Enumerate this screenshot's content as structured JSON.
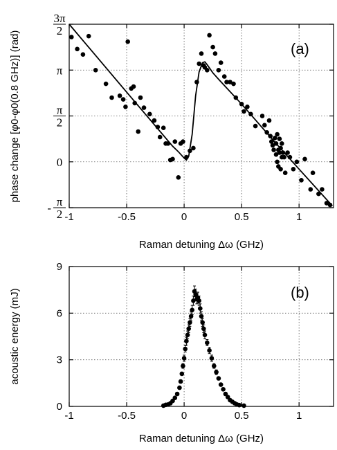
{
  "chart_data": [
    {
      "type": "scatter",
      "panel_label": "(a)",
      "xlabel": "Raman detuning Δω   (GHz)",
      "ylabel": "phase change [φ0-φ0(0.8 GHz)]  (rad)",
      "xlim": [
        -1,
        1.3
      ],
      "ylim": [
        -0.5,
        1.5
      ],
      "y_unit": "π rad",
      "xticks": [
        -1,
        -0.5,
        0,
        0.5,
        1
      ],
      "xtick_labels": [
        "-1",
        "-0.5",
        "0",
        "0.5",
        "1"
      ],
      "yticks": [
        -0.5,
        0,
        0.5,
        1,
        1.5
      ],
      "ytick_labels": [
        {
          "sign": "-",
          "num": "π",
          "den": "2"
        },
        {
          "sign": "",
          "num": "0",
          "den": ""
        },
        {
          "sign": "",
          "num": "π",
          "den": "2"
        },
        {
          "sign": "",
          "num": "π",
          "den": ""
        },
        {
          "sign": "",
          "num": "3π",
          "den": "2"
        }
      ],
      "grid": true,
      "series": [
        {
          "kind": "scatter",
          "x": [
            -0.98,
            -0.93,
            -0.88,
            -0.83,
            -0.77,
            -0.68,
            -0.63,
            -0.56,
            -0.53,
            -0.51,
            -0.49,
            -0.46,
            -0.44,
            -0.43,
            -0.4,
            -0.38,
            -0.35,
            -0.3,
            -0.26,
            -0.23,
            -0.21,
            -0.18,
            -0.16,
            -0.14,
            -0.12,
            -0.1,
            -0.08,
            -0.05,
            -0.03,
            -0.01,
            0.02,
            0.05,
            0.08,
            0.11,
            0.13,
            0.15,
            0.17,
            0.18,
            0.2,
            0.22,
            0.25,
            0.27,
            0.3,
            0.32,
            0.35,
            0.37,
            0.4,
            0.43,
            0.45,
            0.5,
            0.52,
            0.55,
            0.58,
            0.62,
            0.68,
            0.7,
            0.72,
            0.74,
            0.75,
            0.76,
            0.77,
            0.78,
            0.79,
            0.8,
            0.8,
            0.81,
            0.81,
            0.82,
            0.82,
            0.83,
            0.83,
            0.84,
            0.84,
            0.85,
            0.85,
            0.86,
            0.87,
            0.88,
            0.9,
            0.92,
            0.95,
            0.98,
            1.02,
            1.05,
            1.1,
            1.12,
            1.17,
            1.2,
            1.24,
            1.27
          ],
          "y": [
            1.36,
            1.23,
            1.17,
            1.37,
            1.0,
            0.85,
            0.7,
            0.72,
            0.68,
            0.6,
            1.31,
            0.8,
            0.82,
            0.64,
            0.33,
            0.7,
            0.59,
            0.52,
            0.45,
            0.38,
            0.27,
            0.37,
            0.2,
            0.2,
            0.02,
            0.03,
            0.22,
            -0.17,
            0.2,
            0.22,
            0.05,
            0.12,
            0.15,
            0.87,
            1.07,
            1.18,
            1.05,
            1.03,
            1.0,
            1.38,
            1.25,
            1.18,
            1.0,
            1.08,
            0.93,
            0.87,
            0.87,
            0.85,
            0.7,
            0.63,
            0.55,
            0.6,
            0.52,
            0.39,
            0.5,
            0.4,
            0.32,
            0.45,
            0.28,
            0.22,
            0.18,
            0.13,
            0.26,
            0.08,
            0.2,
            0.0,
            0.3,
            -0.05,
            0.13,
            0.1,
            0.25,
            -0.08,
            0.15,
            0.05,
            0.2,
            0.1,
            0.05,
            -0.12,
            0.1,
            0.05,
            -0.08,
            0.0,
            -0.2,
            0.03,
            -0.3,
            -0.12,
            -0.35,
            -0.3,
            -0.45,
            -0.47
          ]
        },
        {
          "kind": "line",
          "x": [
            -1.0,
            -0.5,
            -0.1,
            -0.05,
            0.0,
            0.02,
            0.04,
            0.07,
            0.1,
            0.13,
            0.16,
            0.18,
            0.2,
            0.25,
            0.3,
            0.5,
            0.8,
            1.0,
            1.29
          ],
          "y": [
            1.5,
            0.76,
            0.17,
            0.11,
            0.04,
            0.02,
            0.06,
            0.3,
            0.72,
            0.98,
            1.08,
            1.09,
            1.06,
            0.97,
            0.9,
            0.63,
            0.2,
            -0.08,
            -0.48
          ]
        }
      ]
    },
    {
      "type": "scatter",
      "panel_label": "(b)",
      "xlabel": "Raman detuning Δω  (GHz)",
      "ylabel": "acoustic energy  (mJ)",
      "xlim": [
        -1,
        1.3
      ],
      "ylim": [
        0,
        9
      ],
      "xticks": [
        -1,
        -0.5,
        0,
        0.5,
        1
      ],
      "xtick_labels": [
        "-1",
        "-0.5",
        "0",
        "0.5",
        "1"
      ],
      "yticks": [
        0,
        3,
        6,
        9
      ],
      "ytick_labels": [
        "0",
        "3",
        "6",
        "9"
      ],
      "grid": true,
      "series": [
        {
          "kind": "scatter_errorbars",
          "x": [
            -0.18,
            -0.16,
            -0.14,
            -0.12,
            -0.1,
            -0.08,
            -0.06,
            -0.04,
            -0.03,
            -0.02,
            -0.01,
            0.0,
            0.01,
            0.02,
            0.03,
            0.04,
            0.05,
            0.06,
            0.07,
            0.08,
            0.09,
            0.1,
            0.11,
            0.12,
            0.13,
            0.14,
            0.15,
            0.16,
            0.17,
            0.18,
            0.2,
            0.22,
            0.24,
            0.26,
            0.28,
            0.3,
            0.32,
            0.34,
            0.36,
            0.38,
            0.4,
            0.42,
            0.44,
            0.46,
            0.48,
            0.52
          ],
          "y": [
            0.05,
            0.1,
            0.12,
            0.2,
            0.35,
            0.55,
            0.8,
            1.2,
            1.6,
            2.1,
            2.6,
            3.1,
            3.7,
            4.2,
            4.6,
            5.0,
            5.4,
            5.8,
            6.2,
            6.8,
            7.4,
            7.2,
            6.9,
            7.0,
            6.8,
            6.3,
            5.8,
            5.4,
            5.0,
            4.6,
            4.1,
            3.6,
            3.1,
            2.6,
            2.2,
            1.8,
            1.4,
            1.1,
            0.8,
            0.6,
            0.4,
            0.3,
            0.2,
            0.12,
            0.08,
            0.05
          ],
          "err": [
            0.05,
            0.05,
            0.05,
            0.05,
            0.05,
            0.1,
            0.1,
            0.1,
            0.1,
            0.1,
            0.15,
            0.2,
            0.2,
            0.25,
            0.25,
            0.25,
            0.25,
            0.3,
            0.3,
            0.3,
            0.35,
            0.35,
            0.3,
            0.35,
            0.3,
            0.3,
            0.3,
            0.25,
            0.25,
            0.25,
            0.2,
            0.2,
            0.2,
            0.15,
            0.15,
            0.1,
            0.1,
            0.1,
            0.1,
            0.05,
            0.05,
            0.05,
            0.05,
            0.05,
            0.05,
            0.05
          ]
        }
      ]
    }
  ]
}
